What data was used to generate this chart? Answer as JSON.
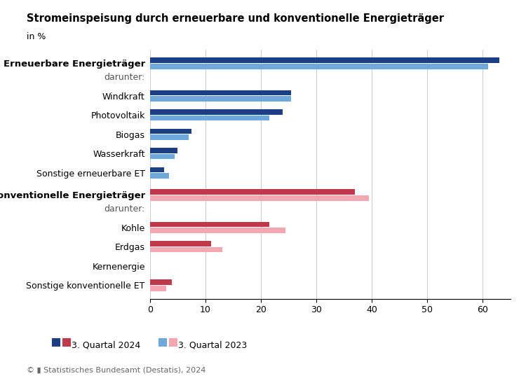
{
  "title": "Stromeinspeisung durch erneuerbare und konventionelle Energieträger",
  "subtitle": "in %",
  "footer": "© ▮ Statistisches Bundesamt (Destatis), 2024",
  "categories": [
    "Erneuerbare Energieträger",
    "darunter:",
    "Windkraft",
    "Photovoltaik",
    "Biogas",
    "Wasserkraft",
    "Sonstige erneuerbare ET",
    "Konventionelle Energieträger",
    "darunter:",
    "Kohle",
    "Erdgas",
    "Kernenergie",
    "Sonstige konventionelle ET"
  ],
  "bold_rows": [
    0,
    7
  ],
  "darunter_rows": [
    1,
    8
  ],
  "values_2024": [
    63.0,
    null,
    25.5,
    24.0,
    7.5,
    5.0,
    2.5,
    37.0,
    null,
    21.5,
    11.0,
    0.0,
    4.0
  ],
  "values_2023": [
    61.0,
    null,
    25.5,
    21.5,
    7.0,
    4.5,
    3.5,
    39.5,
    null,
    24.5,
    13.0,
    0.0,
    3.0
  ],
  "color_2024_renewable": "#1b3f82",
  "color_2023_renewable": "#6fa8dc",
  "color_2024_conventional": "#c0394b",
  "color_2023_conventional": "#f4a7b0",
  "xlim": [
    0,
    65
  ],
  "xticks": [
    0,
    10,
    20,
    30,
    40,
    50,
    60
  ],
  "legend_labels": [
    "3. Quartal 2024",
    "3. Quartal 2023"
  ],
  "background_color": "#ffffff",
  "grid_color": "#cccccc"
}
